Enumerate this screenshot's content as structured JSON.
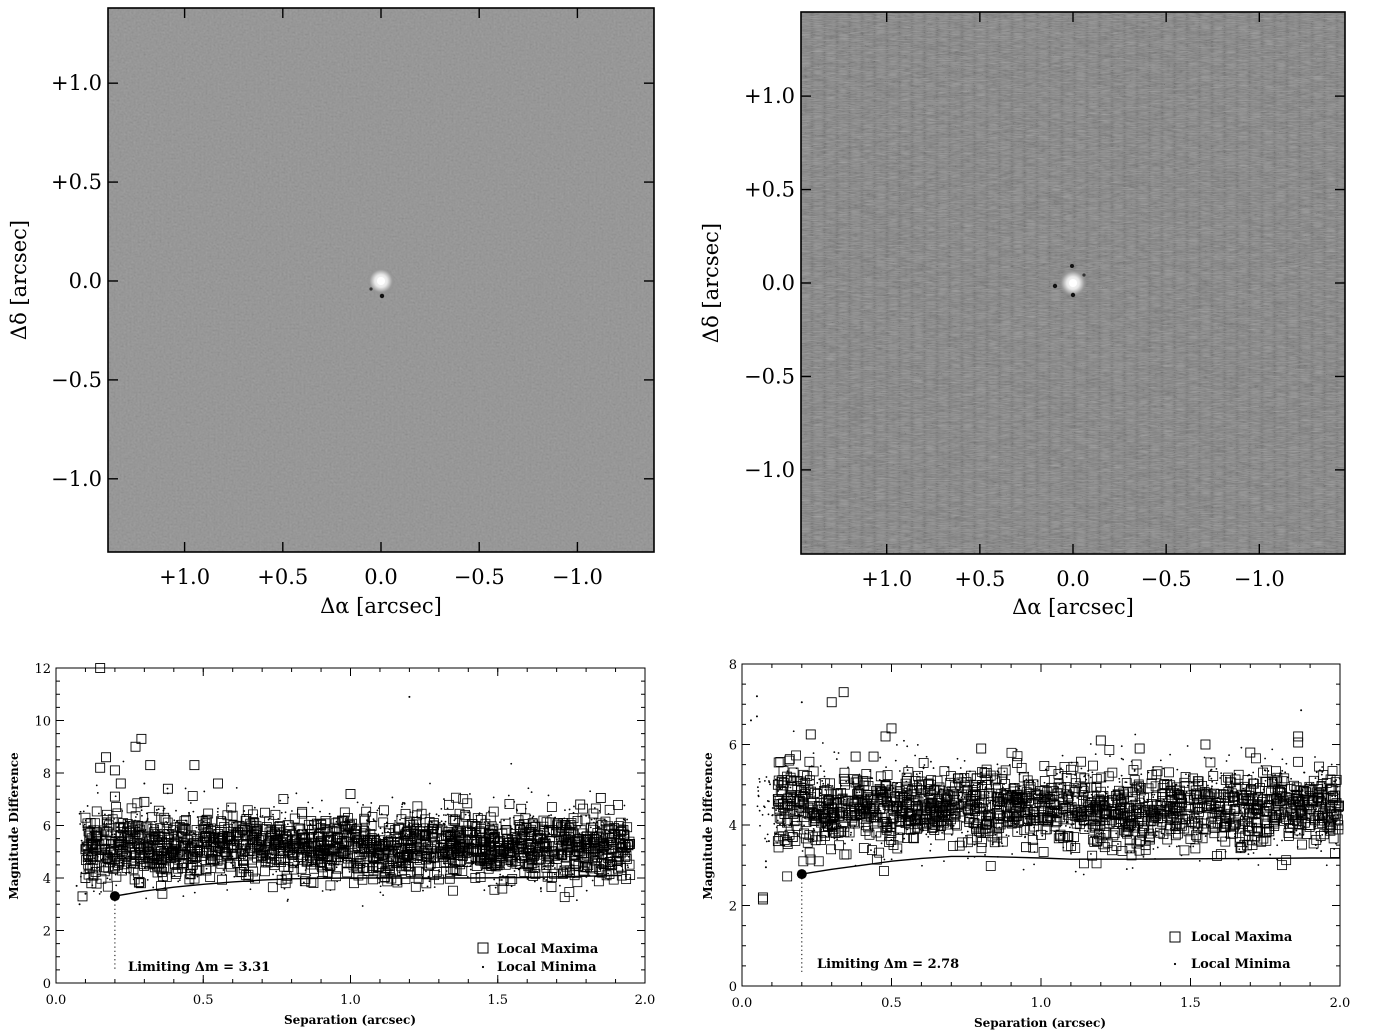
{
  "chart_data": [
    {
      "type": "heatmap",
      "xlabel": "Δα [arcsec]",
      "ylabel": "Δδ [arcsec]",
      "xticks": [
        "+1.0",
        "+0.5",
        "0.0",
        "−0.5",
        "−1.0"
      ],
      "yticks": [
        "+1.0",
        "+0.5",
        "0.0",
        "−0.5",
        "−1.0"
      ],
      "xtick_values": [
        1.0,
        0.5,
        0.0,
        -0.5,
        -1.0
      ],
      "ytick_values": [
        1.0,
        0.5,
        0.0,
        -0.5,
        -1.0
      ],
      "xlim": [
        1.39,
        -1.39
      ],
      "ylim": [
        -1.37,
        1.38
      ],
      "source": {
        "x": 0.0,
        "y": 0.0
      },
      "background": "#8c8c8c"
    },
    {
      "type": "heatmap",
      "xlabel": "Δα [arcsec]",
      "ylabel": "Δδ [arcsec]",
      "xticks": [
        "+1.0",
        "+0.5",
        "0.0",
        "−0.5",
        "−1.0"
      ],
      "yticks": [
        "+1.0",
        "+0.5",
        "0.0",
        "−0.5",
        "−1.0"
      ],
      "xtick_values": [
        1.0,
        0.5,
        0.0,
        -0.5,
        -1.0
      ],
      "ytick_values": [
        1.0,
        0.5,
        0.0,
        -0.5,
        -1.0
      ],
      "xlim": [
        1.46,
        -1.46
      ],
      "ylim": [
        -1.45,
        1.45
      ],
      "source": {
        "x": 0.0,
        "y": 0.0
      },
      "background": "#8c8c8c"
    },
    {
      "type": "scatter",
      "xlabel": "Separation  (arcsec)",
      "ylabel": "Magnitude Difference",
      "xlim": [
        0.0,
        2.0
      ],
      "ylim": [
        0,
        12
      ],
      "xticks": [
        "0.0",
        "0.5",
        "1.0",
        "1.5",
        "2.0"
      ],
      "xtick_values": [
        0.0,
        0.5,
        1.0,
        1.5,
        2.0
      ],
      "yticks": [
        "0",
        "2",
        "4",
        "6",
        "8",
        "10",
        "12"
      ],
      "ytick_values": [
        0,
        2,
        4,
        6,
        8,
        10,
        12
      ],
      "annotation": "Limiting Δm = 3.31",
      "limit_point": {
        "x": 0.2,
        "y": 3.31
      },
      "legend": [
        "Local Maxima",
        "Local Minima"
      ],
      "legend_position": "bottom-right",
      "curve": [
        [
          0.2,
          3.31
        ],
        [
          0.3,
          3.5
        ],
        [
          0.4,
          3.65
        ],
        [
          0.5,
          3.76
        ],
        [
          0.6,
          3.85
        ],
        [
          0.7,
          3.92
        ],
        [
          0.8,
          3.97
        ],
        [
          0.9,
          3.99
        ],
        [
          1.0,
          4.0
        ],
        [
          1.2,
          4.0
        ],
        [
          1.4,
          4.0
        ],
        [
          1.6,
          4.02
        ],
        [
          1.8,
          4.07
        ],
        [
          1.92,
          4.1
        ]
      ],
      "outliers_max": [
        [
          0.15,
          12.0
        ],
        [
          0.15,
          8.2
        ],
        [
          0.17,
          8.6
        ],
        [
          0.2,
          8.1
        ],
        [
          0.22,
          7.6
        ],
        [
          0.29,
          9.3
        ],
        [
          0.3,
          6.9
        ],
        [
          0.32,
          8.3
        ],
        [
          0.38,
          7.4
        ],
        [
          0.47,
          8.3
        ],
        [
          0.55,
          7.6
        ],
        [
          0.2,
          7.1
        ],
        [
          1.0,
          7.2
        ],
        [
          1.85,
          7.05
        ],
        [
          1.78,
          6.8
        ],
        [
          0.09,
          3.3
        ],
        [
          0.1,
          4.0
        ],
        [
          0.12,
          3.8
        ],
        [
          0.1,
          5.1
        ],
        [
          0.14,
          5.6
        ],
        [
          0.27,
          9.0
        ]
      ],
      "cluster_max": {
        "x_range": [
          0.1,
          1.95
        ],
        "y_center": 5.2,
        "y_spread": 0.6
      },
      "outliers_min": [
        [
          1.2,
          10.9
        ],
        [
          0.08,
          3.0
        ],
        [
          0.1,
          3.4
        ],
        [
          0.07,
          3.7
        ],
        [
          0.3,
          7.6
        ]
      ],
      "cluster_min": {
        "x_range": [
          0.08,
          1.95
        ],
        "y_center": 5.3,
        "y_spread": 0.8
      }
    },
    {
      "type": "scatter",
      "xlabel": "Separation  (arcsec)",
      "ylabel": "Magnitude Difference",
      "xlim": [
        0.0,
        2.0
      ],
      "ylim": [
        0,
        8
      ],
      "xticks": [
        "0.0",
        "0.5",
        "1.0",
        "1.5",
        "2.0"
      ],
      "xtick_values": [
        0.0,
        0.5,
        1.0,
        1.5,
        2.0
      ],
      "yticks": [
        "0",
        "2",
        "4",
        "6",
        "8"
      ],
      "ytick_values": [
        0,
        2,
        4,
        6,
        8
      ],
      "annotation": "Limiting Δm = 2.78",
      "limit_point": {
        "x": 0.2,
        "y": 2.78
      },
      "legend": [
        "Local Maxima",
        "Local Minima"
      ],
      "legend_position": "bottom-right",
      "curve": [
        [
          0.2,
          2.78
        ],
        [
          0.3,
          2.9
        ],
        [
          0.4,
          3.0
        ],
        [
          0.5,
          3.1
        ],
        [
          0.6,
          3.17
        ],
        [
          0.7,
          3.22
        ],
        [
          0.8,
          3.22
        ],
        [
          0.9,
          3.2
        ],
        [
          1.0,
          3.18
        ],
        [
          1.1,
          3.15
        ],
        [
          1.3,
          3.15
        ],
        [
          1.5,
          3.16
        ],
        [
          1.7,
          3.17
        ],
        [
          1.9,
          3.18
        ],
        [
          2.0,
          3.18
        ]
      ],
      "outliers_max": [
        [
          0.07,
          2.2
        ],
        [
          0.07,
          2.15
        ],
        [
          0.12,
          5.0
        ],
        [
          0.12,
          4.6
        ],
        [
          0.23,
          6.25
        ],
        [
          0.3,
          7.05
        ],
        [
          0.34,
          7.3
        ],
        [
          0.44,
          5.7
        ],
        [
          0.38,
          5.7
        ],
        [
          0.48,
          6.2
        ],
        [
          0.5,
          6.4
        ],
        [
          1.2,
          6.1
        ],
        [
          1.55,
          6.0
        ],
        [
          1.86,
          6.2
        ],
        [
          1.86,
          6.05
        ],
        [
          0.8,
          5.9
        ],
        [
          1.7,
          5.8
        ],
        [
          1.33,
          5.9
        ],
        [
          0.17,
          3.7
        ],
        [
          0.12,
          3.6
        ],
        [
          1.67,
          3.45
        ],
        [
          1.35,
          3.5
        ],
        [
          0.95,
          3.45
        ]
      ],
      "cluster_max": {
        "x_range": [
          0.12,
          2.0
        ],
        "y_center": 4.4,
        "y_spread": 0.45
      },
      "outliers_min": [
        [
          0.05,
          7.2
        ],
        [
          0.05,
          6.7
        ],
        [
          0.03,
          6.6
        ],
        [
          0.08,
          3.1
        ],
        [
          1.87,
          6.85
        ],
        [
          0.08,
          2.95
        ],
        [
          0.09,
          3.6
        ],
        [
          0.2,
          7.05
        ]
      ],
      "cluster_min": {
        "x_range": [
          0.05,
          2.0
        ],
        "y_center": 4.5,
        "y_spread": 0.6
      }
    }
  ]
}
